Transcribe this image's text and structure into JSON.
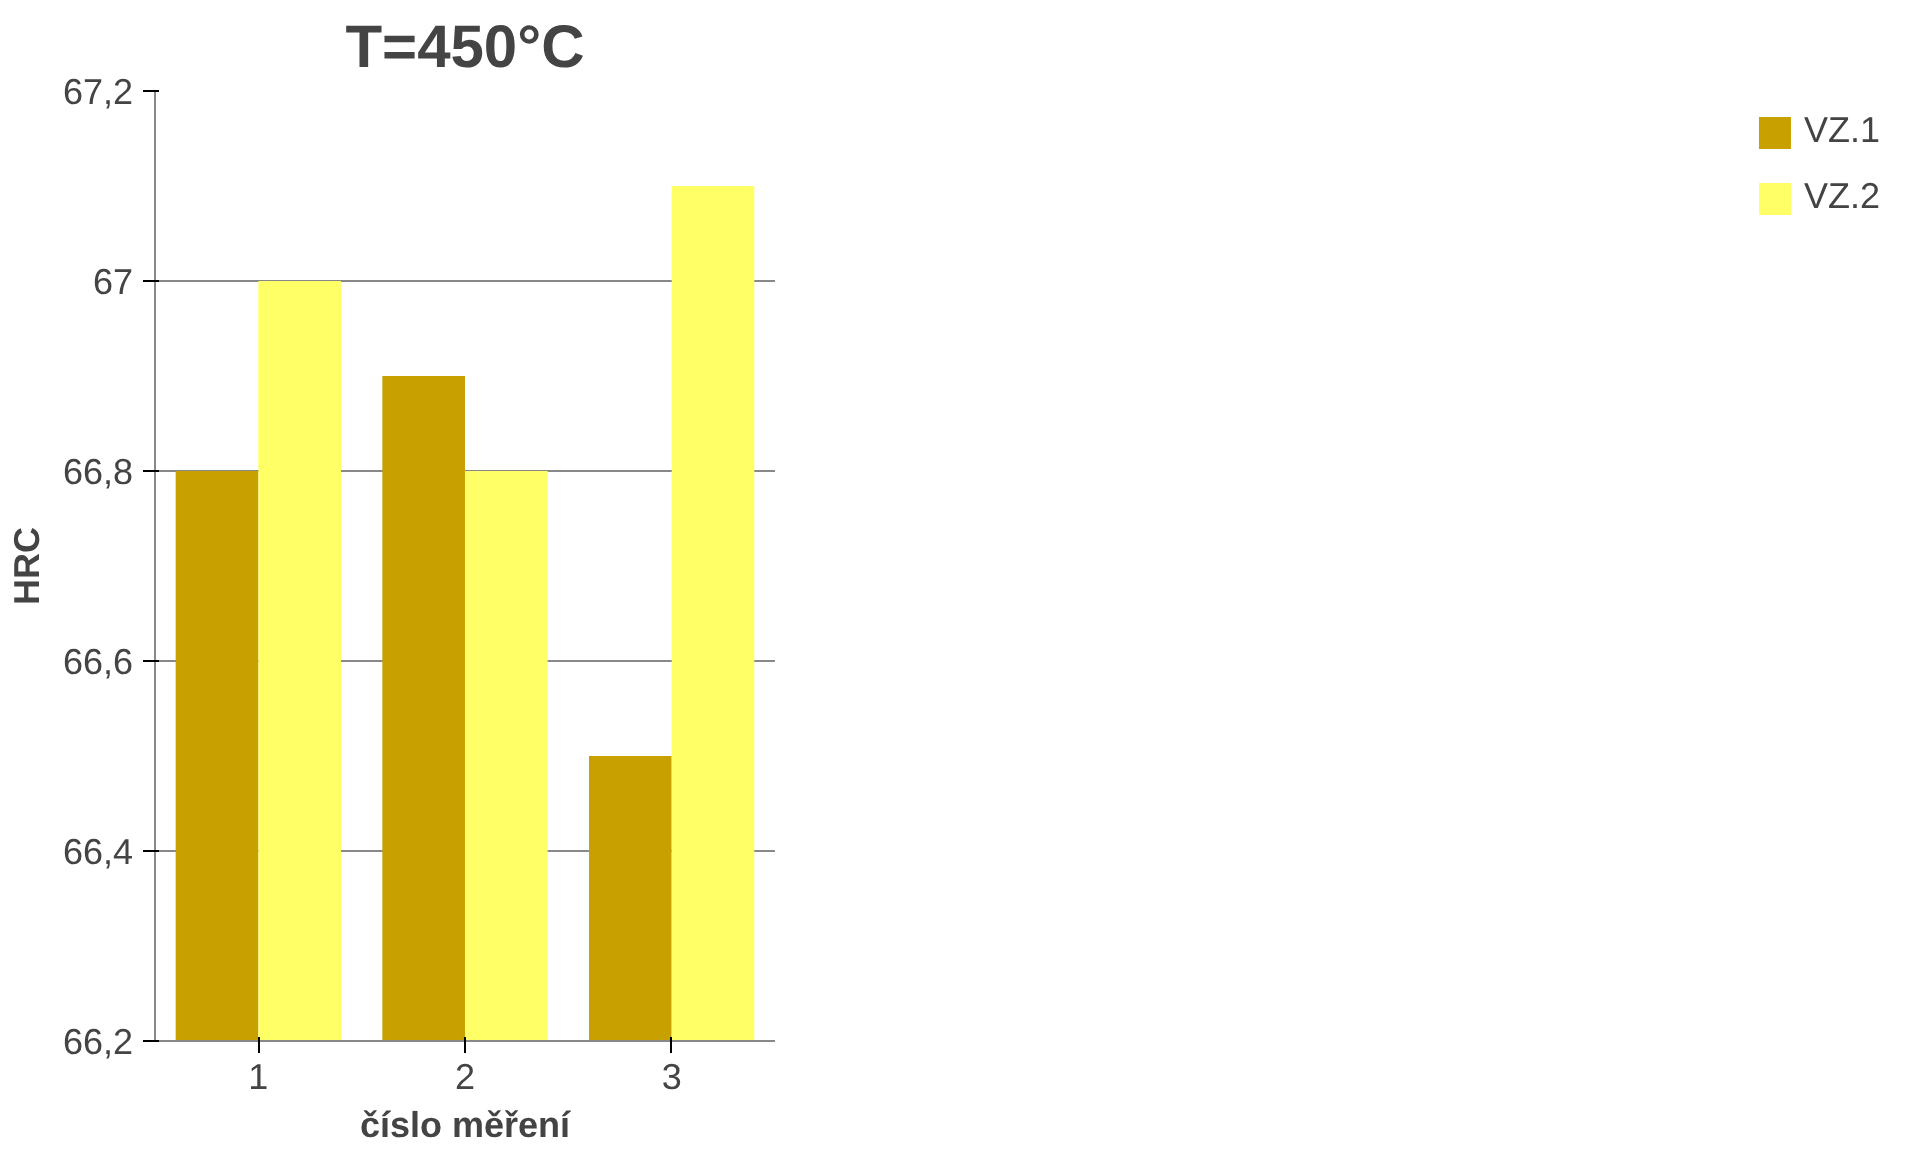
{
  "chart_data": {
    "type": "bar",
    "title": "T=450°C",
    "xlabel": "číslo měření",
    "ylabel": "HRC",
    "categories": [
      "1",
      "2",
      "3"
    ],
    "series": [
      {
        "name": "VZ.1",
        "color": "#c8a000",
        "values": [
          66.8,
          66.9,
          66.5
        ]
      },
      {
        "name": "VZ.2",
        "color": "#ffff66",
        "values": [
          67.0,
          66.8,
          67.1
        ]
      }
    ],
    "ylim": [
      66.2,
      67.2
    ],
    "yticks": [
      {
        "value": 66.2,
        "label": "66,2"
      },
      {
        "value": 66.4,
        "label": "66,4"
      },
      {
        "value": 66.6,
        "label": "66,6"
      },
      {
        "value": 66.8,
        "label": "66,8"
      },
      {
        "value": 67,
        "label": "67"
      },
      {
        "value": 67.2,
        "label": "67,2"
      }
    ],
    "grid": "y",
    "legend": "right"
  }
}
